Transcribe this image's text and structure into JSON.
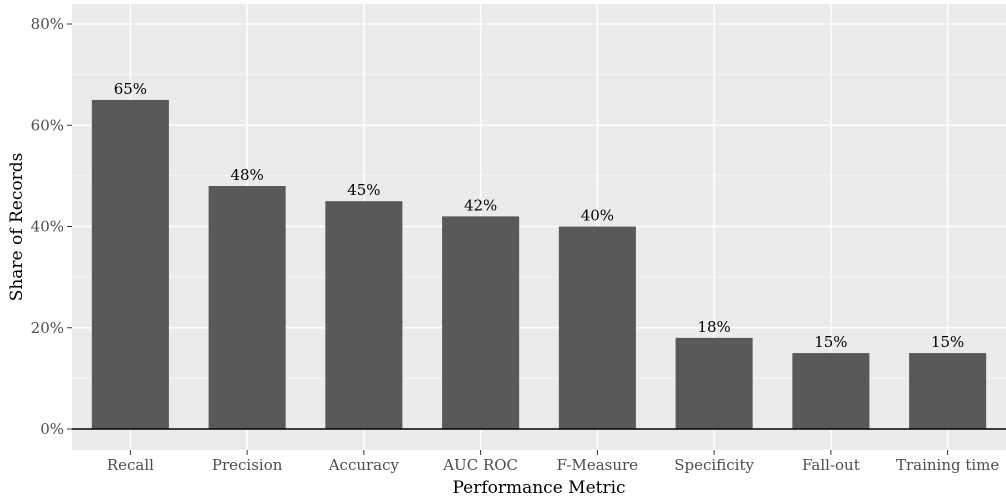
{
  "chart_data": {
    "type": "bar",
    "categories": [
      "Recall",
      "Precision",
      "Accuracy",
      "AUC ROC",
      "F-Measure",
      "Specificity",
      "Fall-out",
      "Training time"
    ],
    "values": [
      65,
      48,
      45,
      42,
      40,
      18,
      15,
      15
    ],
    "data_labels": [
      "65%",
      "48%",
      "45%",
      "42%",
      "40%",
      "18%",
      "15%",
      "15%"
    ],
    "xlabel": "Performance Metric",
    "ylabel": "Share of Records",
    "ylim": [
      0,
      82
    ],
    "y_ticks": [
      0,
      20,
      40,
      60,
      80
    ],
    "y_tick_labels": [
      "0%",
      "20%",
      "40%",
      "60%",
      "80%"
    ],
    "grid": true,
    "colors": {
      "bar": "#595959",
      "panel": "#ebebeb",
      "grid_major": "#ffffff",
      "grid_minor": "#f5f5f5"
    }
  }
}
